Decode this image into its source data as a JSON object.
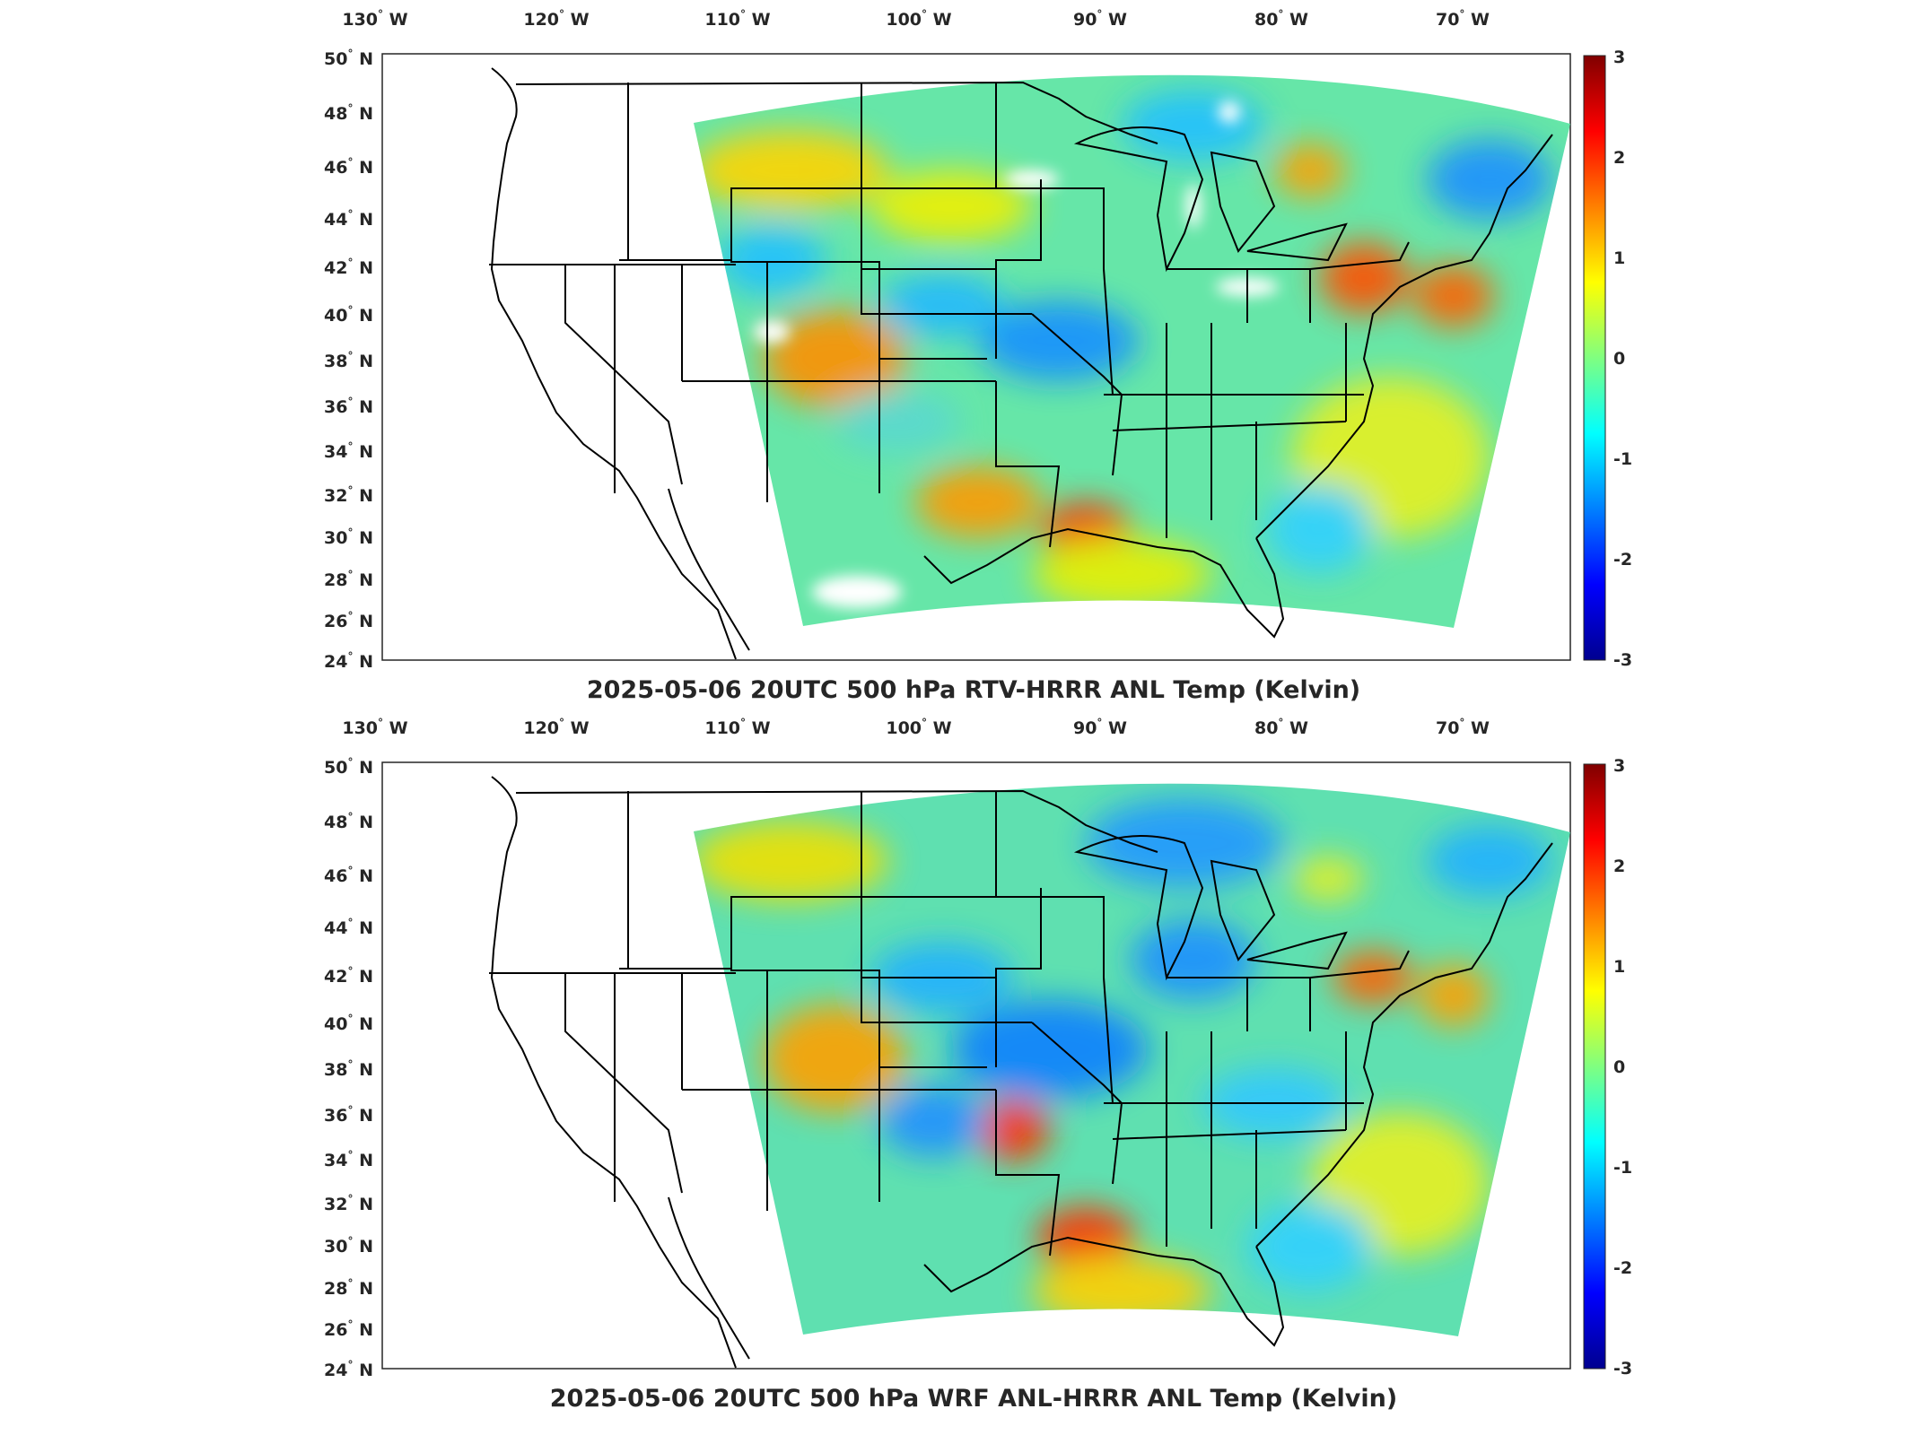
{
  "panels": [
    {
      "id": "rtv",
      "title": "2025-05-06 20UTC 500 hPa RTV-HRRR ANL Temp (Kelvin)",
      "lon_labels": [
        "130",
        "120",
        "110",
        "100",
        "90",
        "80",
        "70"
      ],
      "lon_hemisphere": "W",
      "lat_labels": [
        "50",
        "48",
        "46",
        "44",
        "42",
        "40",
        "38",
        "36",
        "34",
        "32",
        "30",
        "28",
        "26",
        "24"
      ],
      "lat_hemisphere": "N",
      "colorbar_ticks": [
        "3",
        "2",
        "1",
        "0",
        "-1",
        "-2",
        "-3"
      ],
      "has_missing_data_gaps": true
    },
    {
      "id": "wrf",
      "title": "2025-05-06 20UTC 500 hPa WRF ANL-HRRR ANL Temp (Kelvin)",
      "lon_labels": [
        "130",
        "120",
        "110",
        "100",
        "90",
        "80",
        "70"
      ],
      "lon_hemisphere": "W",
      "lat_labels": [
        "50",
        "48",
        "46",
        "44",
        "42",
        "40",
        "38",
        "36",
        "34",
        "32",
        "30",
        "28",
        "26",
        "24"
      ],
      "lat_hemisphere": "N",
      "colorbar_ticks": [
        "3",
        "2",
        "1",
        "0",
        "-1",
        "-2",
        "-3"
      ],
      "has_missing_data_gaps": false
    }
  ],
  "degree_symbol": "°",
  "colormap": [
    "#00008f",
    "#0000ff",
    "#0080ff",
    "#00ffff",
    "#80ff80",
    "#ffff00",
    "#ff8000",
    "#ff0000",
    "#800000"
  ],
  "field_background_color": "#5fe0a0",
  "missing_color": "#ffffff"
}
